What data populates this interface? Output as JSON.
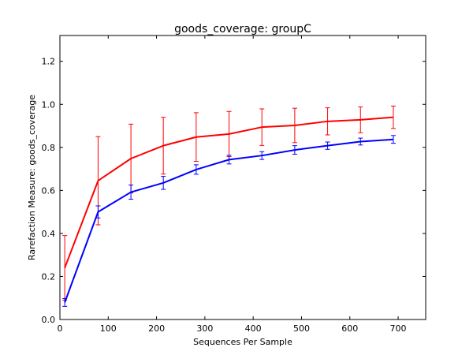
{
  "chart_data": {
    "type": "line",
    "title": "goods_coverage: groupC",
    "xlabel": "Sequences Per Sample",
    "ylabel": "Rarefaction Measure: goods_coverage",
    "xlim": [
      0,
      757
    ],
    "ylim": [
      0.0,
      1.32
    ],
    "xticks": [
      0,
      100,
      200,
      300,
      400,
      500,
      600,
      700
    ],
    "yticks": [
      0.0,
      0.2,
      0.4,
      0.6,
      0.8,
      1.0,
      1.2
    ],
    "xtick_labels": [
      "0",
      "100",
      "200",
      "300",
      "400",
      "500",
      "600",
      "700"
    ],
    "ytick_labels": [
      "0.0",
      "0.2",
      "0.4",
      "0.6",
      "0.8",
      "1.0",
      "1.2"
    ],
    "grid": false,
    "legend": "none",
    "x": [
      10,
      79,
      147,
      214,
      282,
      350,
      418,
      486,
      554,
      622,
      690
    ],
    "series": [
      {
        "color": "#ff0000",
        "values": [
          0.24,
          0.645,
          0.748,
          0.808,
          0.848,
          0.862,
          0.894,
          0.902,
          0.921,
          0.928,
          0.94
        ],
        "errors": [
          0.15,
          0.205,
          0.16,
          0.132,
          0.113,
          0.105,
          0.085,
          0.08,
          0.063,
          0.06,
          0.052
        ]
      },
      {
        "color": "#0000ff",
        "values": [
          0.079,
          0.5,
          0.592,
          0.635,
          0.697,
          0.743,
          0.762,
          0.788,
          0.808,
          0.827,
          0.837
        ],
        "errors": [
          0.018,
          0.028,
          0.033,
          0.03,
          0.022,
          0.02,
          0.018,
          0.02,
          0.017,
          0.016,
          0.018
        ]
      }
    ]
  }
}
